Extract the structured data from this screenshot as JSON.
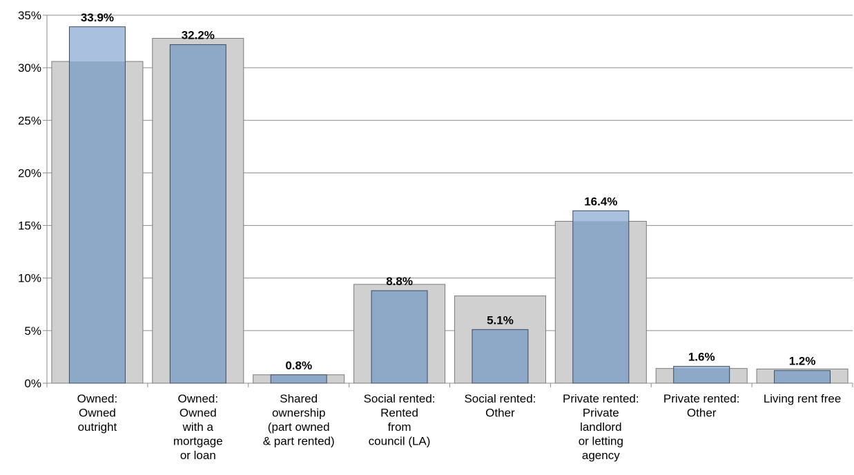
{
  "chart_data": {
    "type": "bar",
    "title": "",
    "xlabel": "",
    "ylabel": "",
    "ylim": [
      0,
      35
    ],
    "y_tick_step": 5,
    "y_tick_format": "percent",
    "grid": true,
    "legend": "none",
    "categories": [
      [
        "Owned:",
        "Owned",
        "outright"
      ],
      [
        "Owned:",
        "Owned",
        "with a",
        "mortgage",
        "or loan"
      ],
      [
        "Shared",
        "ownership",
        "(part owned",
        "& part rented)"
      ],
      [
        "Social rented:",
        "Rented",
        "from",
        "council (LA)"
      ],
      [
        "Social rented:",
        "Other"
      ],
      [
        "Private rented:",
        "Private",
        "landlord",
        "or letting",
        "agency"
      ],
      [
        "Private rented:",
        "Other"
      ],
      [
        "Living rent free"
      ]
    ],
    "series": [
      {
        "role": "background",
        "values": [
          30.6,
          32.8,
          0.8,
          9.4,
          8.3,
          15.4,
          1.4,
          1.35
        ],
        "color": "#d0d0d0"
      },
      {
        "role": "foreground",
        "values": [
          33.9,
          32.2,
          0.8,
          8.8,
          5.1,
          16.4,
          1.6,
          1.2
        ],
        "data_labels": [
          "33.9%",
          "32.2%",
          "0.8%",
          "8.8%",
          "5.1%",
          "16.4%",
          "1.6%",
          "1.2%"
        ],
        "color": "#8ea8c8",
        "overflow_color": "#a9c0de"
      }
    ],
    "y_ticks": [
      "0%",
      "5%",
      "10%",
      "15%",
      "20%",
      "25%",
      "30%",
      "35%"
    ]
  }
}
